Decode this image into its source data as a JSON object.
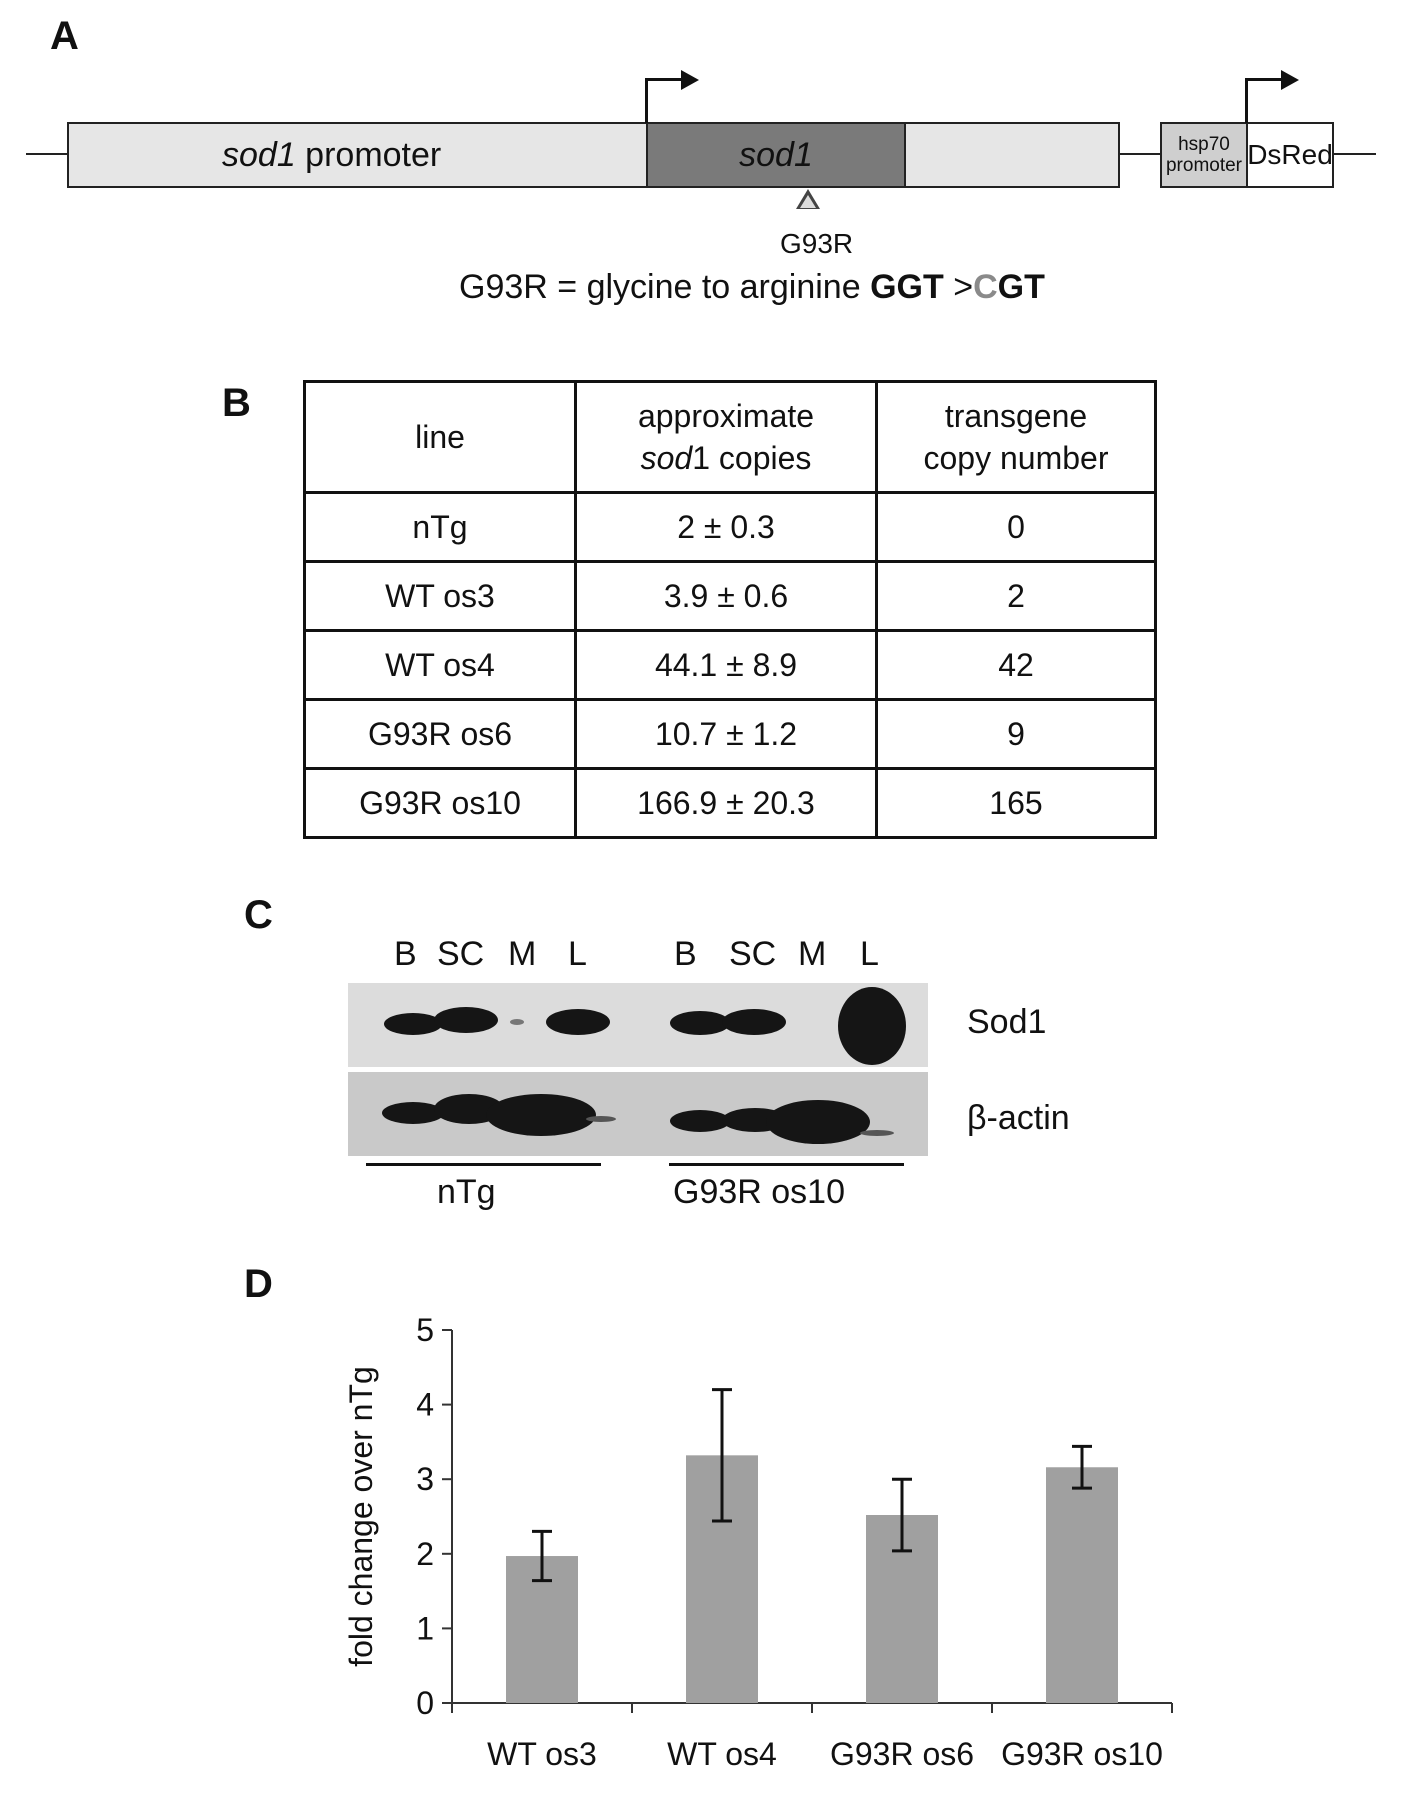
{
  "panels": {
    "a": "A",
    "b": "B",
    "c": "C",
    "d": "D"
  },
  "construct": {
    "promoter_italic": "sod1",
    "promoter_rest": " promoter",
    "gene_label": "sod1",
    "hsp_line1": "hsp70",
    "hsp_line2": "promoter",
    "reporter_label": "DsRed",
    "mutation_label": "G93R",
    "mutation_desc_prefix": "G93R = glycine to arginine ",
    "codon_from": "GGT",
    "codon_sep": " >",
    "codon_to_changed": "C",
    "codon_to_rest": "GT",
    "mutation_color": "#8a8a8a"
  },
  "table": {
    "headers": {
      "line": "line",
      "copies_line1": "approximate",
      "copies_italic": "sod",
      "copies_rest": "1 copies",
      "transgene_line1": "transgene",
      "transgene_line2": "copy number"
    },
    "rows": [
      {
        "line": "nTg",
        "copies": "2 ± 0.3",
        "transgene": "0"
      },
      {
        "line": "WT os3",
        "copies": "3.9 ± 0.6",
        "transgene": "2"
      },
      {
        "line": "WT os4",
        "copies": "44.1 ± 8.9",
        "transgene": "42"
      },
      {
        "line": "G93R os6",
        "copies": "10.7 ± 1.2",
        "transgene": "9"
      },
      {
        "line": "G93R os10",
        "copies": "166.9 ± 20.3",
        "transgene": "165"
      }
    ]
  },
  "blot": {
    "lanes": [
      "B",
      "SC",
      "M",
      "L",
      "B",
      "SC",
      "M",
      "L"
    ],
    "rows": [
      "Sod1",
      "β-actin"
    ],
    "groups": [
      "nTg",
      "G93R os10"
    ]
  },
  "chart_data": {
    "type": "bar",
    "categories": [
      "WT os3",
      "WT os4",
      "G93R os6",
      "G93R os10"
    ],
    "values": [
      1.97,
      3.32,
      2.52,
      3.16
    ],
    "errors": [
      0.33,
      0.88,
      0.48,
      0.28
    ],
    "ylabel": "fold change over nTg",
    "ylim": [
      0,
      5
    ],
    "yticks": [
      0,
      1,
      2,
      3,
      4,
      5
    ],
    "bar_color": "#a0a0a0"
  }
}
